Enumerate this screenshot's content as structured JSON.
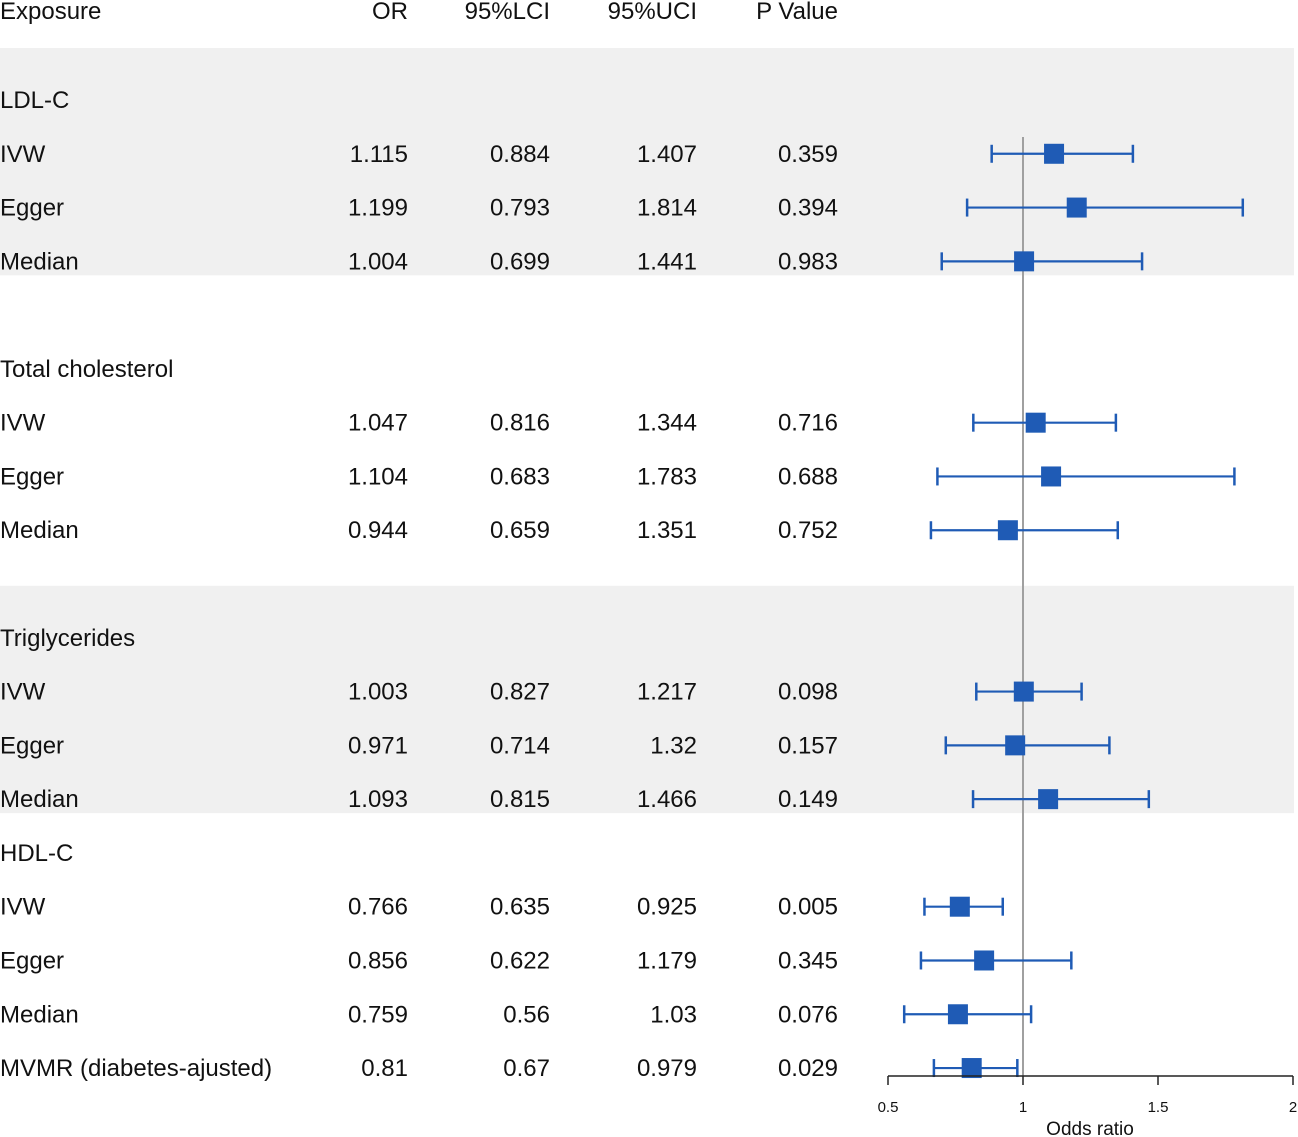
{
  "chart_data": {
    "type": "forest",
    "columns": [
      "Exposure",
      "OR",
      "95%LCI",
      "95%UCI",
      "P Value"
    ],
    "xlabel": "Odds ratio",
    "xlim": [
      0.5,
      2
    ],
    "xticks": [
      "0.5",
      "1",
      "1.5",
      "2"
    ],
    "reference_line": 1,
    "colors": {
      "marker": "#1f5bb5",
      "band": "#f0f0f0",
      "refline": "#a0a0a0"
    },
    "sections": [
      {
        "label": "LDL-C",
        "shaded": true,
        "gap_after": true,
        "rows": [
          {
            "method": "IVW",
            "or": "1.115",
            "lci": "0.884",
            "uci": "1.407",
            "p": "0.359"
          },
          {
            "method": "Egger",
            "or": "1.199",
            "lci": "0.793",
            "uci": "1.814",
            "p": "0.394"
          },
          {
            "method": "Median",
            "or": "1.004",
            "lci": "0.699",
            "uci": "1.441",
            "p": "0.983"
          }
        ]
      },
      {
        "label": "Total cholesterol",
        "shaded": false,
        "gap_after": true,
        "rows": [
          {
            "method": "IVW",
            "or": "1.047",
            "lci": "0.816",
            "uci": "1.344",
            "p": "0.716"
          },
          {
            "method": "Egger",
            "or": "1.104",
            "lci": "0.683",
            "uci": "1.783",
            "p": "0.688"
          },
          {
            "method": "Median",
            "or": "0.944",
            "lci": "0.659",
            "uci": "1.351",
            "p": "0.752"
          }
        ]
      },
      {
        "label": "Triglycerides",
        "shaded": true,
        "gap_after": false,
        "rows": [
          {
            "method": "IVW",
            "or": "1.003",
            "lci": "0.827",
            "uci": "1.217",
            "p": "0.098"
          },
          {
            "method": "Egger",
            "or": "0.971",
            "lci": "0.714",
            "uci": "1.32",
            "p": "0.157"
          },
          {
            "method": "Median",
            "or": "1.093",
            "lci": "0.815",
            "uci": "1.466",
            "p": "0.149"
          }
        ]
      },
      {
        "label": "HDL-C",
        "shaded": false,
        "gap_after": false,
        "rows": [
          {
            "method": "IVW",
            "or": "0.766",
            "lci": "0.635",
            "uci": "0.925",
            "p": "0.005"
          },
          {
            "method": "Egger",
            "or": "0.856",
            "lci": "0.622",
            "uci": "1.179",
            "p": "0.345"
          },
          {
            "method": "Median",
            "or": "0.759",
            "lci": "0.56",
            "uci": "1.03",
            "p": "0.076"
          },
          {
            "method": "MVMR (diabetes-ajusted)",
            "or": "0.81",
            "lci": "0.67",
            "uci": "0.979",
            "p": "0.029"
          }
        ]
      }
    ]
  }
}
